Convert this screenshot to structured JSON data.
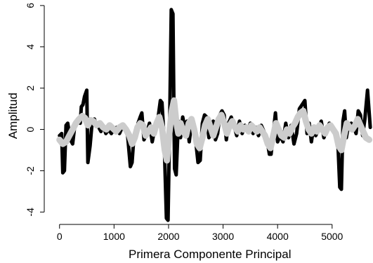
{
  "chart_data": {
    "type": "line",
    "title": "",
    "xlabel": "Primera Componente Principal",
    "ylabel": "Amplitud",
    "xlim": [
      -280,
      5750
    ],
    "ylim": [
      -4.6,
      6.2
    ],
    "xticks": [
      0,
      1000,
      2000,
      3000,
      4000,
      5000
    ],
    "yticks": [
      -4,
      -2,
      0,
      2,
      4,
      6
    ],
    "grid": false,
    "legend": "none",
    "series": [
      {
        "style": "thick black jagged signal",
        "color": "#000000",
        "points": [
          [
            0,
            -0.3
          ],
          [
            40,
            -0.2
          ],
          [
            60,
            -2.1
          ],
          [
            90,
            -2.0
          ],
          [
            120,
            0.2
          ],
          [
            150,
            0.3
          ],
          [
            200,
            -0.5
          ],
          [
            240,
            -0.7
          ],
          [
            280,
            0.2
          ],
          [
            330,
            0.5
          ],
          [
            380,
            0.3
          ],
          [
            400,
            1.1
          ],
          [
            430,
            1.2
          ],
          [
            460,
            1.6
          ],
          [
            500,
            1.9
          ],
          [
            520,
            -1.6
          ],
          [
            560,
            -0.8
          ],
          [
            600,
            0.4
          ],
          [
            640,
            0.5
          ],
          [
            680,
            0.2
          ],
          [
            720,
            0.1
          ],
          [
            760,
            -0.1
          ],
          [
            800,
            0.2
          ],
          [
            850,
            -0.2
          ],
          [
            900,
            0.0
          ],
          [
            950,
            -0.2
          ],
          [
            1000,
            0.0
          ],
          [
            1050,
            0.1
          ],
          [
            1100,
            -0.2
          ],
          [
            1150,
            0.1
          ],
          [
            1200,
            0.0
          ],
          [
            1250,
            -0.3
          ],
          [
            1300,
            -1.8
          ],
          [
            1330,
            -1.6
          ],
          [
            1360,
            -0.5
          ],
          [
            1400,
            -0.4
          ],
          [
            1440,
            0.3
          ],
          [
            1480,
            0.6
          ],
          [
            1510,
            0.8
          ],
          [
            1550,
            -0.5
          ],
          [
            1600,
            -0.2
          ],
          [
            1650,
            0.3
          ],
          [
            1700,
            -0.6
          ],
          [
            1750,
            0.1
          ],
          [
            1800,
            0.4
          ],
          [
            1850,
            1.4
          ],
          [
            1880,
            1.3
          ],
          [
            1920,
            -0.5
          ],
          [
            1960,
            -4.3
          ],
          [
            1990,
            -4.4
          ],
          [
            2020,
            0.2
          ],
          [
            2050,
            5.8
          ],
          [
            2080,
            5.6
          ],
          [
            2110,
            -1.9
          ],
          [
            2140,
            -2.2
          ],
          [
            2180,
            0.4
          ],
          [
            2220,
            -0.4
          ],
          [
            2260,
            0.6
          ],
          [
            2300,
            0.1
          ],
          [
            2340,
            0.4
          ],
          [
            2380,
            -0.6
          ],
          [
            2420,
            0.3
          ],
          [
            2460,
            0.0
          ],
          [
            2500,
            -0.6
          ],
          [
            2540,
            -1.6
          ],
          [
            2580,
            -1.5
          ],
          [
            2620,
            0.3
          ],
          [
            2660,
            0.7
          ],
          [
            2700,
            0.6
          ],
          [
            2740,
            -0.4
          ],
          [
            2780,
            -0.2
          ],
          [
            2820,
            0.4
          ],
          [
            2860,
            -0.5
          ],
          [
            2900,
            -0.2
          ],
          [
            2940,
            0.7
          ],
          [
            2980,
            0.9
          ],
          [
            3020,
            0.7
          ],
          [
            3060,
            -0.5
          ],
          [
            3100,
            0.3
          ],
          [
            3150,
            0.6
          ],
          [
            3200,
            0.2
          ],
          [
            3250,
            -0.3
          ],
          [
            3300,
            0.4
          ],
          [
            3350,
            -0.2
          ],
          [
            3400,
            0.2
          ],
          [
            3450,
            -0.1
          ],
          [
            3500,
            0.3
          ],
          [
            3550,
            -0.2
          ],
          [
            3600,
            0.1
          ],
          [
            3650,
            -0.3
          ],
          [
            3700,
            0.2
          ],
          [
            3750,
            -0.1
          ],
          [
            3800,
            -0.4
          ],
          [
            3850,
            -1.2
          ],
          [
            3880,
            -1.2
          ],
          [
            3920,
            -0.2
          ],
          [
            3960,
            0.8
          ],
          [
            4000,
            -0.6
          ],
          [
            4050,
            -0.3
          ],
          [
            4100,
            -0.6
          ],
          [
            4150,
            0.3
          ],
          [
            4200,
            -0.4
          ],
          [
            4250,
            0.2
          ],
          [
            4300,
            -0.7
          ],
          [
            4350,
            -0.2
          ],
          [
            4400,
            1.0
          ],
          [
            4450,
            1.2
          ],
          [
            4500,
            1.4
          ],
          [
            4540,
            -0.2
          ],
          [
            4580,
            0.3
          ],
          [
            4620,
            -0.6
          ],
          [
            4660,
            0.1
          ],
          [
            4700,
            -0.3
          ],
          [
            4750,
            0.0
          ],
          [
            4800,
            0.4
          ],
          [
            4850,
            -0.4
          ],
          [
            4900,
            0.0
          ],
          [
            4950,
            0.3
          ],
          [
            5000,
            0.1
          ],
          [
            5050,
            -0.2
          ],
          [
            5100,
            -0.3
          ],
          [
            5140,
            -2.8
          ],
          [
            5170,
            -2.9
          ],
          [
            5200,
            0.4
          ],
          [
            5230,
            0.9
          ],
          [
            5260,
            -0.4
          ],
          [
            5300,
            0.2
          ],
          [
            5350,
            0.3
          ],
          [
            5400,
            0.1
          ],
          [
            5440,
            -0.2
          ],
          [
            5480,
            0.9
          ],
          [
            5520,
            0.7
          ],
          [
            5560,
            -0.3
          ],
          [
            5600,
            0.5
          ],
          [
            5650,
            1.9
          ],
          [
            5700,
            0.1
          ]
        ]
      },
      {
        "style": "thick light gray smooth signal",
        "color": "#cccccc",
        "points": [
          [
            0,
            -0.5
          ],
          [
            60,
            -0.7
          ],
          [
            120,
            -0.6
          ],
          [
            180,
            -0.3
          ],
          [
            240,
            0.0
          ],
          [
            300,
            0.3
          ],
          [
            360,
            0.5
          ],
          [
            420,
            0.65
          ],
          [
            470,
            0.55
          ],
          [
            520,
            0.2
          ],
          [
            570,
            0.45
          ],
          [
            620,
            0.4
          ],
          [
            680,
            0.2
          ],
          [
            740,
            0.3
          ],
          [
            800,
            0.1
          ],
          [
            860,
            0.0
          ],
          [
            920,
            0.2
          ],
          [
            980,
            0.05
          ],
          [
            1040,
            -0.1
          ],
          [
            1100,
            0.1
          ],
          [
            1160,
            0.2
          ],
          [
            1220,
            0.0
          ],
          [
            1280,
            -0.3
          ],
          [
            1330,
            -0.7
          ],
          [
            1380,
            -0.4
          ],
          [
            1430,
            0.1
          ],
          [
            1480,
            0.3
          ],
          [
            1530,
            0.2
          ],
          [
            1580,
            -0.3
          ],
          [
            1630,
            -0.1
          ],
          [
            1680,
            0.1
          ],
          [
            1730,
            -0.2
          ],
          [
            1780,
            0.3
          ],
          [
            1830,
            0.6
          ],
          [
            1880,
            0.1
          ],
          [
            1930,
            -1.0
          ],
          [
            1970,
            -1.5
          ],
          [
            2010,
            -0.3
          ],
          [
            2060,
            0.9
          ],
          [
            2100,
            1.4
          ],
          [
            2140,
            0.4
          ],
          [
            2180,
            -0.2
          ],
          [
            2220,
            0.3
          ],
          [
            2270,
            -0.1
          ],
          [
            2320,
            -0.3
          ],
          [
            2370,
            0.3
          ],
          [
            2420,
            0.5
          ],
          [
            2470,
            0.0
          ],
          [
            2520,
            -0.7
          ],
          [
            2570,
            -0.9
          ],
          [
            2620,
            -0.4
          ],
          [
            2670,
            0.2
          ],
          [
            2720,
            0.5
          ],
          [
            2770,
            0.1
          ],
          [
            2820,
            -0.3
          ],
          [
            2870,
            0.1
          ],
          [
            2920,
            0.5
          ],
          [
            2970,
            0.7
          ],
          [
            3020,
            0.3
          ],
          [
            3070,
            -0.2
          ],
          [
            3120,
            0.2
          ],
          [
            3170,
            0.4
          ],
          [
            3220,
            0.1
          ],
          [
            3270,
            -0.1
          ],
          [
            3320,
            0.2
          ],
          [
            3370,
            0.0
          ],
          [
            3420,
            0.1
          ],
          [
            3470,
            -0.1
          ],
          [
            3520,
            0.2
          ],
          [
            3570,
            0.05
          ],
          [
            3620,
            -0.1
          ],
          [
            3670,
            0.1
          ],
          [
            3720,
            -0.1
          ],
          [
            3770,
            -0.3
          ],
          [
            3820,
            -0.7
          ],
          [
            3870,
            -0.9
          ],
          [
            3920,
            -0.3
          ],
          [
            3970,
            0.3
          ],
          [
            4020,
            0.0
          ],
          [
            4070,
            -0.3
          ],
          [
            4120,
            -0.4
          ],
          [
            4170,
            0.0
          ],
          [
            4220,
            -0.2
          ],
          [
            4270,
            0.1
          ],
          [
            4320,
            0.3
          ],
          [
            4370,
            0.6
          ],
          [
            4420,
            0.8
          ],
          [
            4470,
            0.9
          ],
          [
            4520,
            0.4
          ],
          [
            4570,
            0.0
          ],
          [
            4620,
            -0.2
          ],
          [
            4670,
            0.1
          ],
          [
            4720,
            -0.1
          ],
          [
            4770,
            0.2
          ],
          [
            4820,
            0.0
          ],
          [
            4870,
            -0.2
          ],
          [
            4920,
            0.1
          ],
          [
            4970,
            0.2
          ],
          [
            5020,
            0.0
          ],
          [
            5070,
            -0.2
          ],
          [
            5120,
            -0.8
          ],
          [
            5170,
            -1.0
          ],
          [
            5220,
            -0.3
          ],
          [
            5270,
            0.3
          ],
          [
            5320,
            0.1
          ],
          [
            5370,
            0.0
          ],
          [
            5420,
            0.2
          ],
          [
            5470,
            0.5
          ],
          [
            5520,
            0.2
          ],
          [
            5570,
            -0.1
          ],
          [
            5620,
            -0.4
          ],
          [
            5680,
            -0.5
          ]
        ]
      }
    ]
  }
}
